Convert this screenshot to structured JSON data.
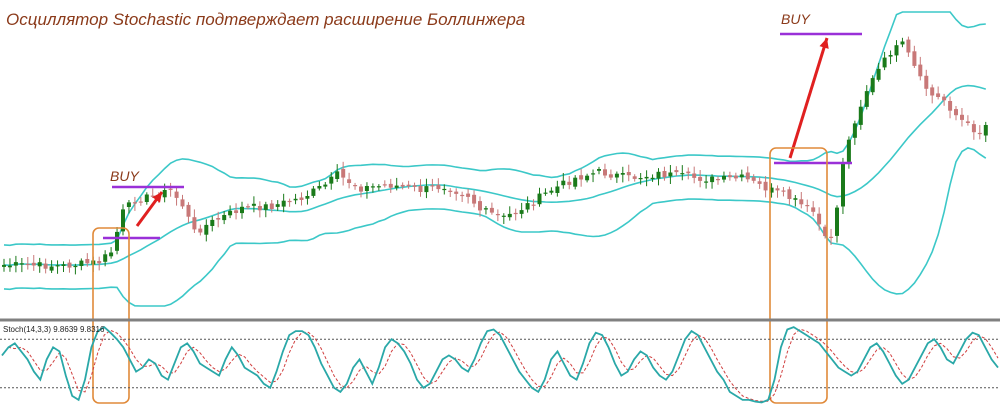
{
  "title": "Осциллятор Stochastic подтверждает расширение Боллинжера",
  "colors": {
    "title": "#8b3a1a",
    "bull": "#1a7a1a",
    "bear": "#c87878",
    "band": "#3cc8c8",
    "signal_line": "#9a30d8",
    "arrow": "#e02020",
    "box": "#e08a3a",
    "stoch_main": "#2aa8a8",
    "stoch_signal": "#d04040",
    "separator": "#808080",
    "level": "#555555"
  },
  "signals": [
    {
      "label": "BUY"
    },
    {
      "label": "BUY"
    }
  ],
  "stoch_label": "Stoch(14,3,3) 9.8639 9.8316",
  "chart_data": {
    "type": "candlestick",
    "title": "Осциллятор Stochastic подтверждает расширение Боллинжера",
    "price_chart": {
      "overlays": [
        "Bollinger Bands (upper/middle/lower)"
      ],
      "signals": [
        {
          "label": "BUY",
          "approx_candle": 18
        },
        {
          "label": "BUY",
          "approx_candle": 126
        }
      ],
      "trend": "range-bound with two bullish breakouts; second breakout larger"
    },
    "oscillator": {
      "name": "Stoch(14,3,3)",
      "main_value": 9.8639,
      "signal_value": 9.8316,
      "levels": [
        80,
        20
      ],
      "ylim": [
        0,
        100
      ],
      "approx_main_series": [
        60,
        70,
        75,
        65,
        55,
        40,
        30,
        55,
        70,
        65,
        35,
        10,
        5,
        30,
        70,
        90,
        95,
        88,
        80,
        70,
        55,
        40,
        45,
        55,
        50,
        35,
        30,
        50,
        70,
        75,
        65,
        50,
        45,
        40,
        35,
        55,
        70,
        60,
        45,
        40,
        35,
        25,
        20,
        40,
        65,
        85,
        90,
        90,
        85,
        70,
        50,
        35,
        20,
        15,
        25,
        45,
        55,
        40,
        25,
        45,
        70,
        80,
        75,
        65,
        50,
        30,
        20,
        25,
        40,
        55,
        60,
        55,
        45,
        40,
        55,
        75,
        90,
        92,
        85,
        70,
        55,
        40,
        30,
        20,
        15,
        30,
        55,
        65,
        50,
        35,
        30,
        50,
        75,
        88,
        85,
        70,
        50,
        35,
        40,
        55,
        65,
        60,
        45,
        35,
        30,
        40,
        60,
        80,
        90,
        85,
        70,
        55,
        40,
        30,
        15,
        10,
        5,
        5,
        3,
        2,
        5,
        30,
        70,
        92,
        95,
        90,
        85,
        80,
        75,
        65,
        55,
        45,
        40,
        35,
        40,
        55,
        70,
        75,
        65,
        50,
        35,
        25,
        30,
        45,
        60,
        75,
        80,
        70,
        55,
        50,
        65,
        80,
        88,
        85,
        70,
        55,
        45
      ]
    }
  }
}
